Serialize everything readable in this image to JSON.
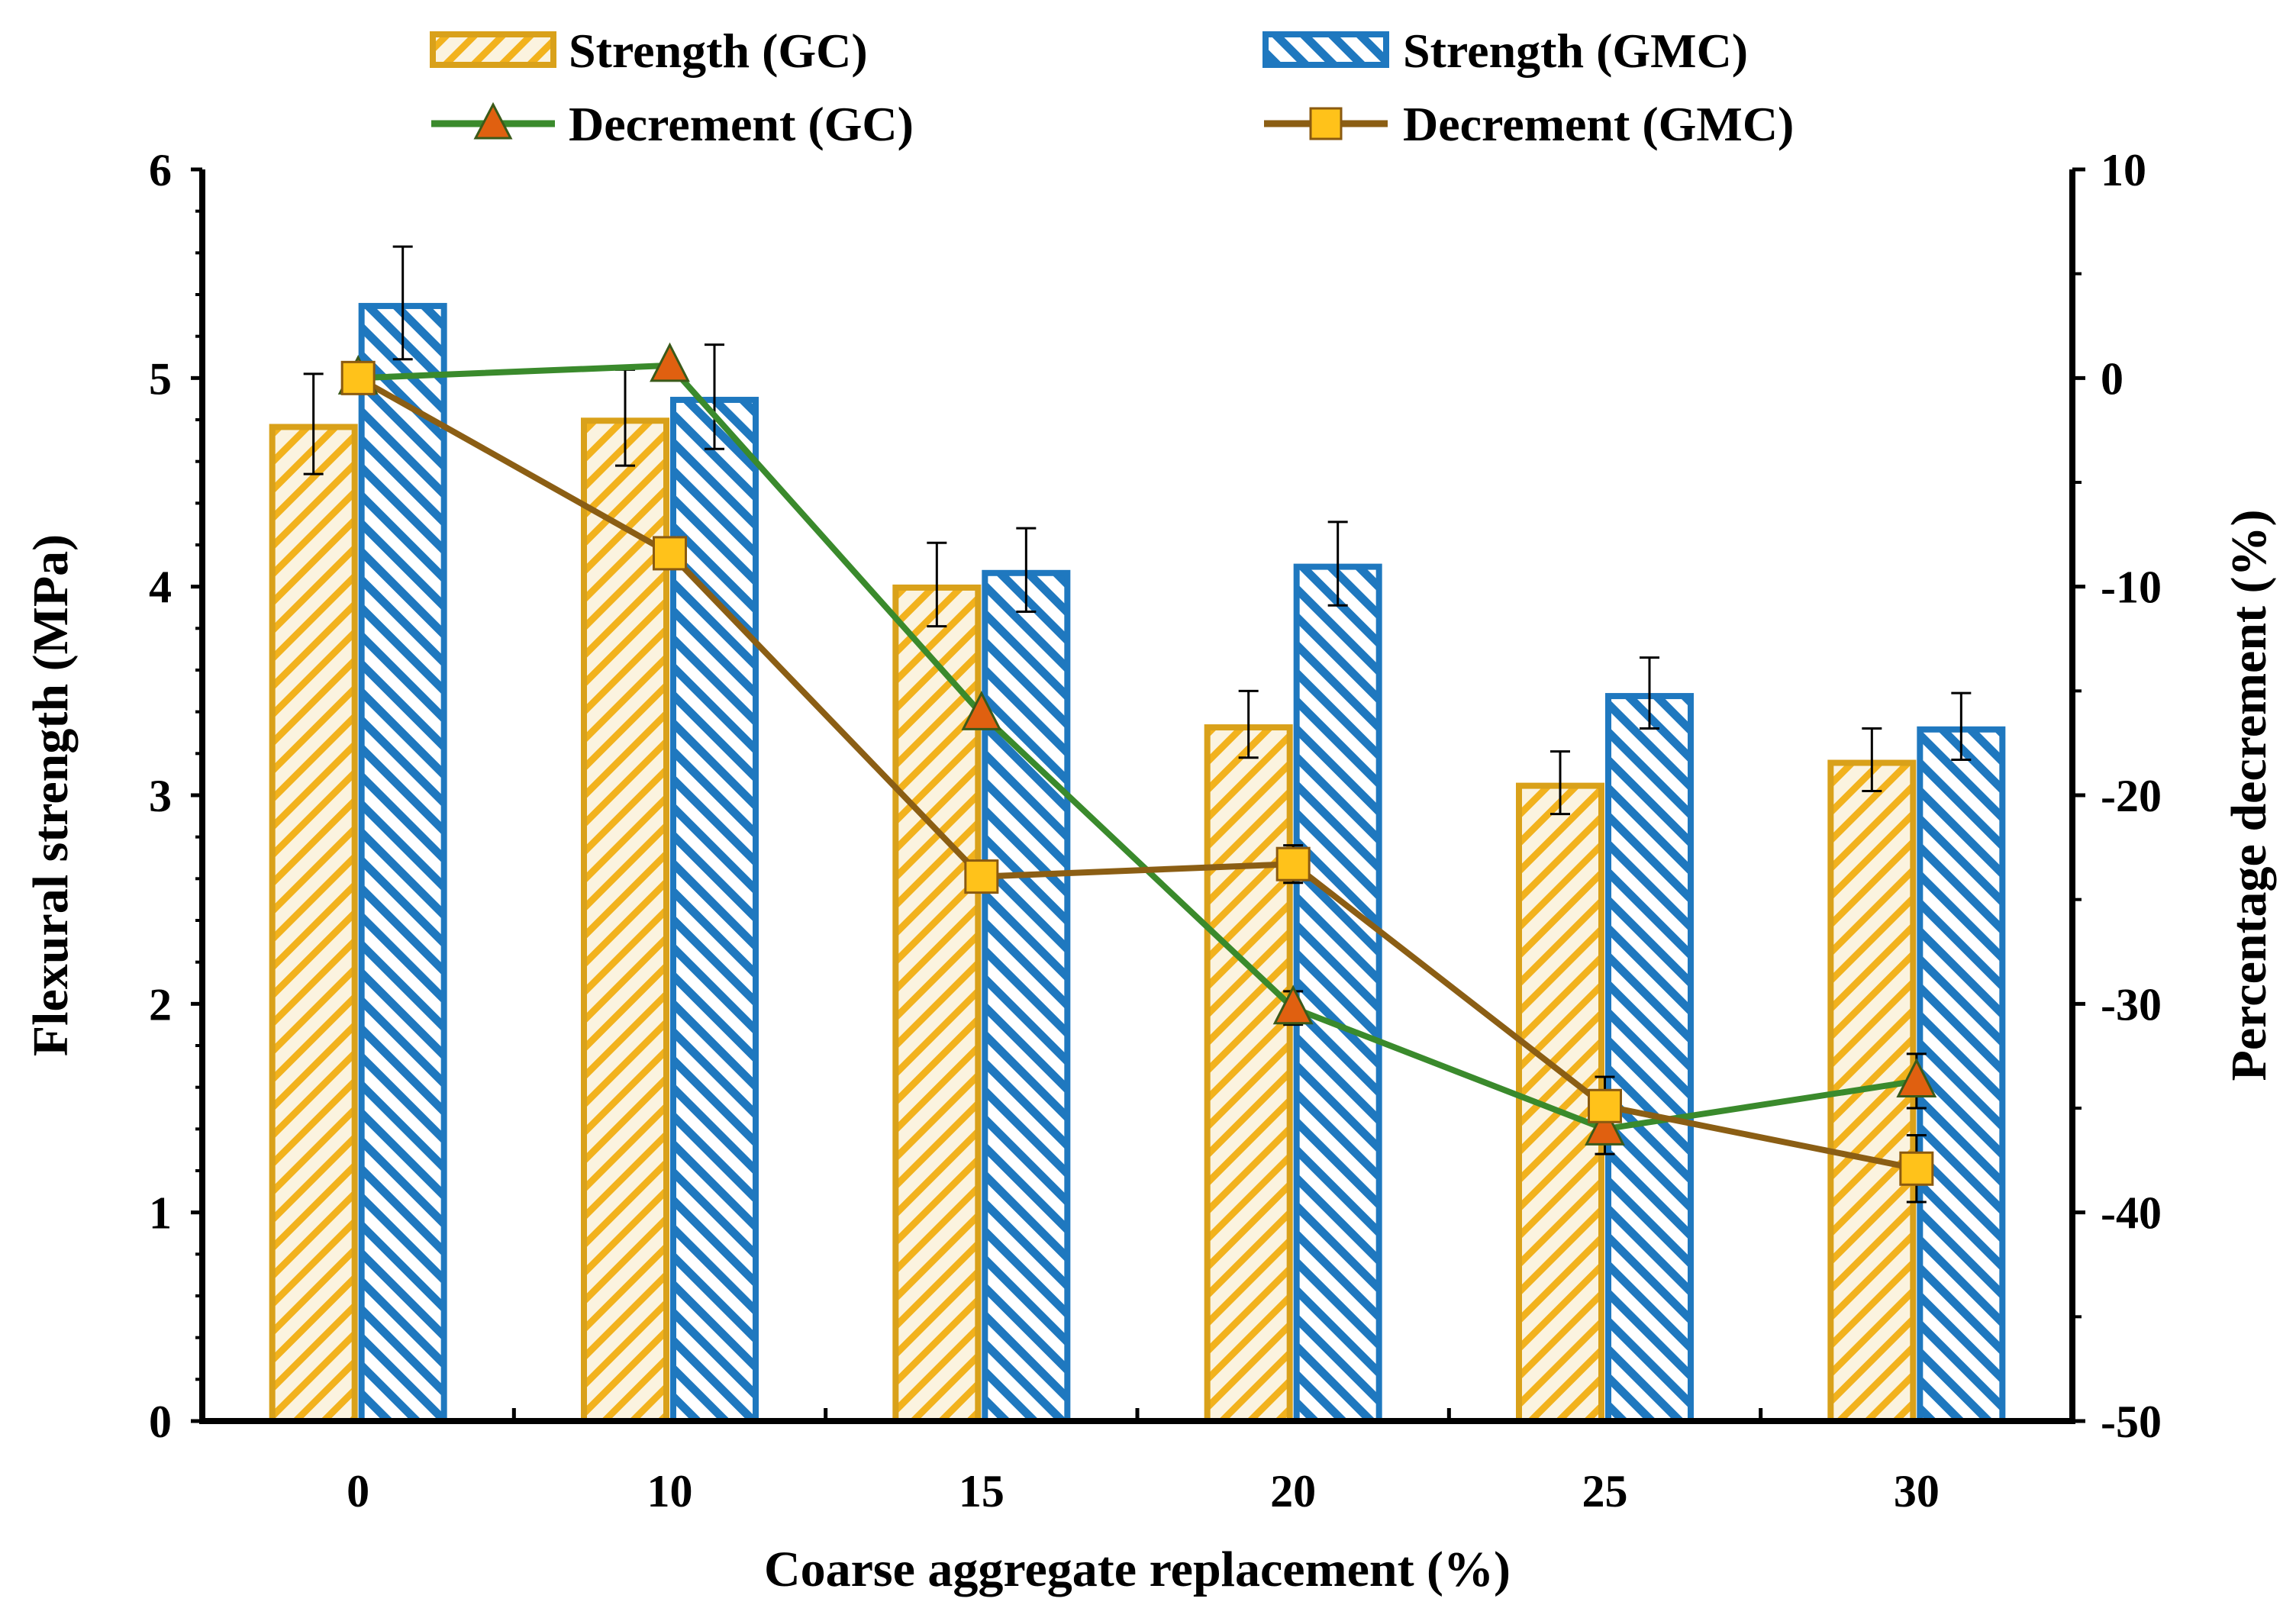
{
  "chart_data": {
    "type": "bar",
    "title": "",
    "xlabel": "Coarse aggregate replacement (%)",
    "ylabel": "Flexural strength (MPa)",
    "y2label": "Percentage decrement (%)",
    "categories": [
      "0",
      "10",
      "15",
      "20",
      "25",
      "30"
    ],
    "ylim": [
      0,
      6
    ],
    "yticks": [
      "0",
      "1",
      "2",
      "3",
      "4",
      "5",
      "6"
    ],
    "y2lim": [
      -50,
      10
    ],
    "y2ticks": [
      "-50",
      "-40",
      "-30",
      "-20",
      "-10",
      "0",
      "10"
    ],
    "legend_position": "top",
    "grid": false,
    "series": [
      {
        "name": "Strength (GC)",
        "kind": "bar",
        "axis": "left",
        "values": [
          4.78,
          4.81,
          4.01,
          3.34,
          3.06,
          3.17
        ],
        "errors": [
          0.24,
          0.23,
          0.2,
          0.16,
          0.15,
          0.15
        ],
        "color": "#E0A81C"
      },
      {
        "name": "Strength (GMC)",
        "kind": "bar",
        "axis": "left",
        "values": [
          5.36,
          4.91,
          4.08,
          4.11,
          3.49,
          3.33
        ],
        "errors": [
          0.27,
          0.25,
          0.2,
          0.2,
          0.17,
          0.16
        ],
        "color": "#1F78BF"
      },
      {
        "name": "Decrement (GC)",
        "kind": "line",
        "axis": "right",
        "marker": "triangle",
        "values": [
          0,
          0.6,
          -16.1,
          -30.2,
          -36.0,
          -33.7
        ],
        "errors": [
          0,
          0,
          0,
          0.8,
          1.2,
          1.3
        ],
        "color": "#3A8A2C",
        "marker_color": "#E06010"
      },
      {
        "name": "Decrement (GMC)",
        "kind": "line",
        "axis": "right",
        "marker": "square",
        "values": [
          0,
          -8.4,
          -23.9,
          -23.3,
          -34.9,
          -37.9
        ],
        "errors": [
          0,
          0,
          0.6,
          0.9,
          1.4,
          1.6
        ],
        "color": "#8B5E14",
        "marker_color": "#FFC21A"
      }
    ]
  }
}
